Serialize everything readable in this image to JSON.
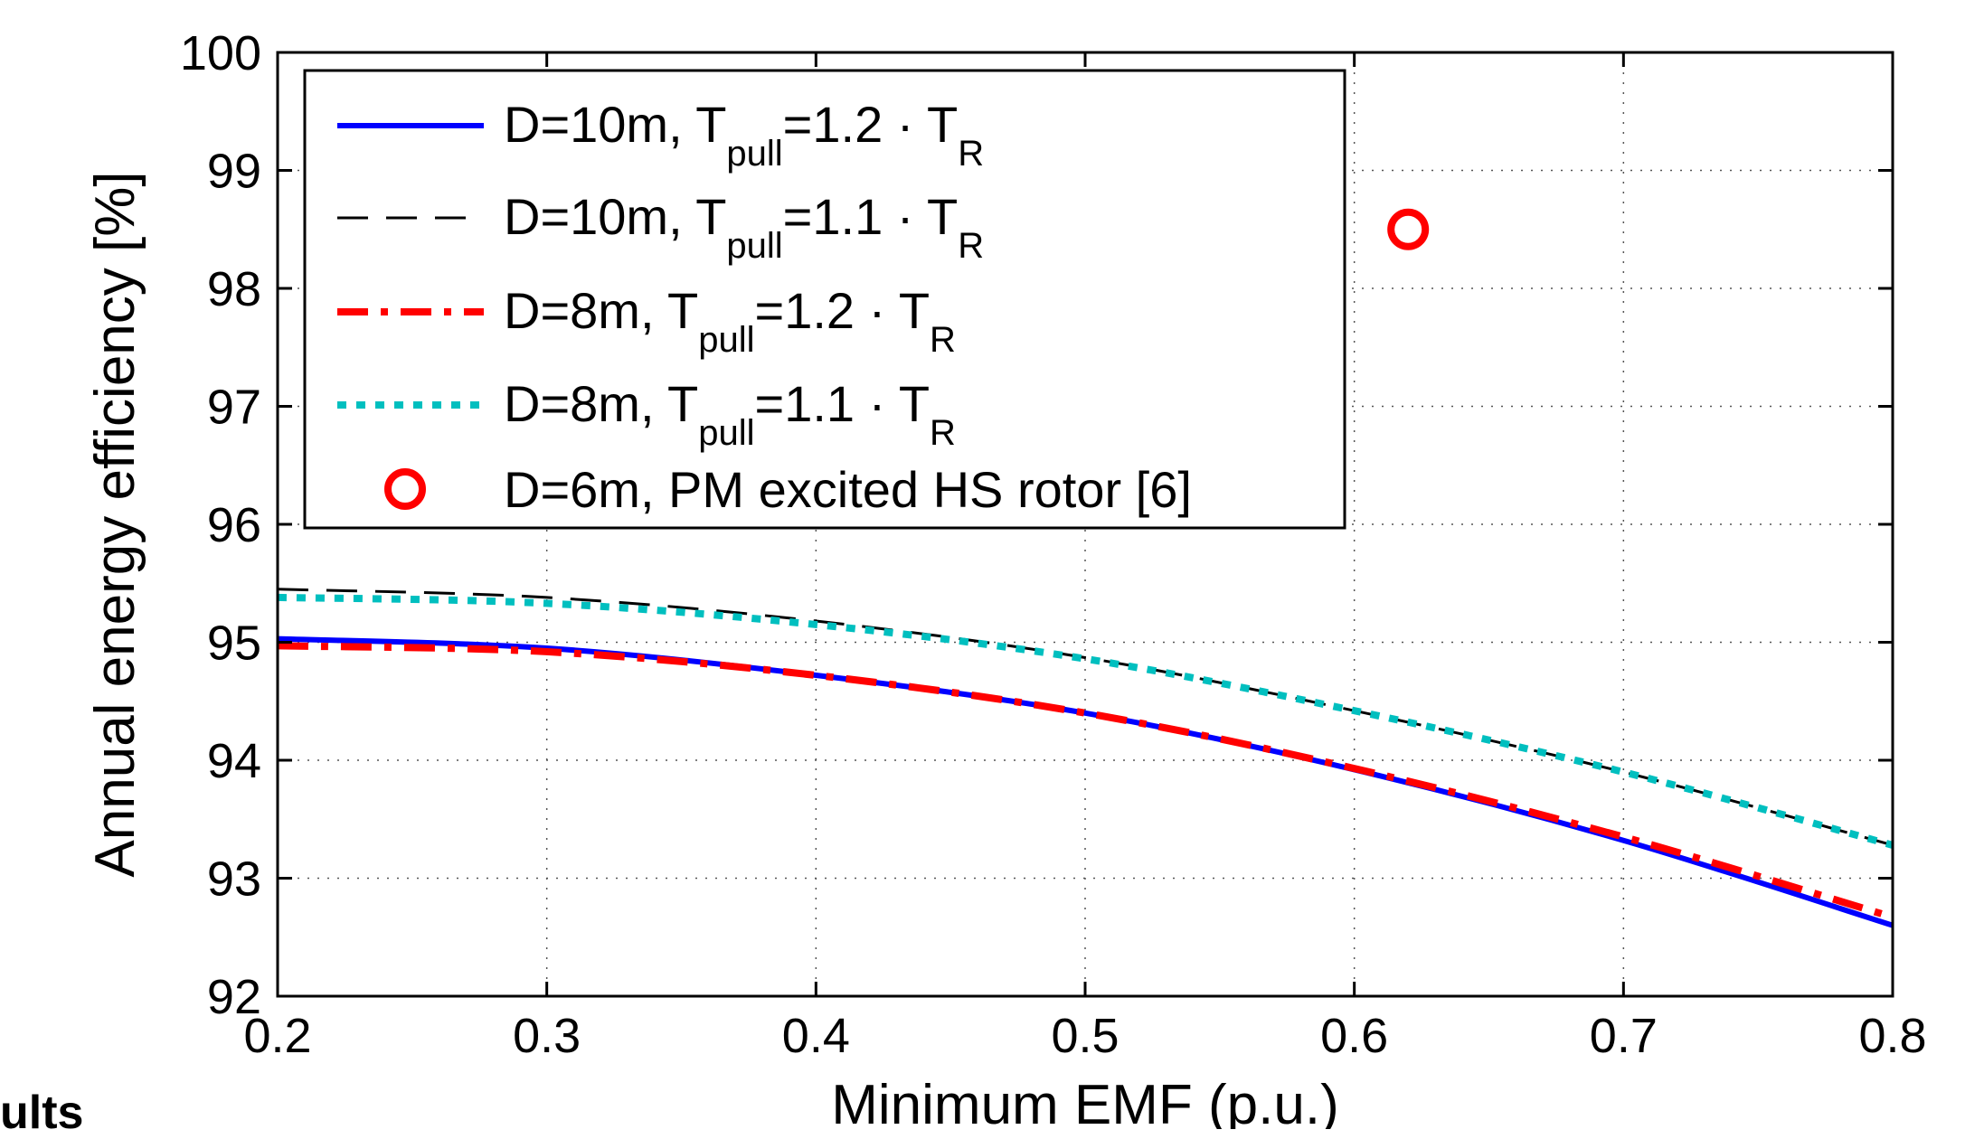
{
  "chart_data": {
    "type": "line",
    "title": "",
    "xlabel": "Minimum EMF (p.u.)",
    "ylabel": "Annual energy efficiency [%]",
    "xlim": [
      0.2,
      0.8
    ],
    "ylim": [
      92,
      100
    ],
    "xticks": [
      "0.2",
      "0.3",
      "0.4",
      "0.5",
      "0.6",
      "0.7",
      "0.8"
    ],
    "yticks": [
      "92",
      "93",
      "94",
      "95",
      "96",
      "97",
      "98",
      "99",
      "100"
    ],
    "grid": true,
    "legend_position": "top-left",
    "x": [
      0.2,
      0.3,
      0.4,
      0.5,
      0.6,
      0.7,
      0.8
    ],
    "series": [
      {
        "label_main": "D=10m, T",
        "label_sub": "pull",
        "label_tail": "=1.2 · T",
        "label_sub2": "R",
        "style": "solid",
        "color": "#0000ff",
        "values": [
          95.03,
          94.95,
          94.72,
          94.4,
          93.92,
          93.32,
          92.6
        ]
      },
      {
        "label_main": "D=10m, T",
        "label_sub": "pull",
        "label_tail": "=1.1 · T",
        "label_sub2": "R",
        "style": "dashed",
        "color": "#000000",
        "values": [
          95.45,
          95.38,
          95.18,
          94.87,
          94.42,
          93.9,
          93.28
        ]
      },
      {
        "label_main": "D=8m, T",
        "label_sub": "pull",
        "label_tail": "=1.2 · T",
        "label_sub2": "R",
        "style": "dashdot",
        "color": "#ff0000",
        "values": [
          94.97,
          94.92,
          94.72,
          94.4,
          93.93,
          93.35,
          92.67
        ]
      },
      {
        "label_main": "D=8m, T",
        "label_sub": "pull",
        "label_tail": "=1.1 · T",
        "label_sub2": "R",
        "style": "dotted",
        "color": "#00bfbf",
        "values": [
          95.38,
          95.33,
          95.15,
          94.86,
          94.42,
          93.9,
          93.28
        ]
      }
    ],
    "marker_series": {
      "label": "D=6m, PM excited HS rotor [6]",
      "color": "#ff0000",
      "point": {
        "x": 0.62,
        "y": 98.5
      }
    }
  },
  "page": {
    "cut_text": "ults"
  }
}
